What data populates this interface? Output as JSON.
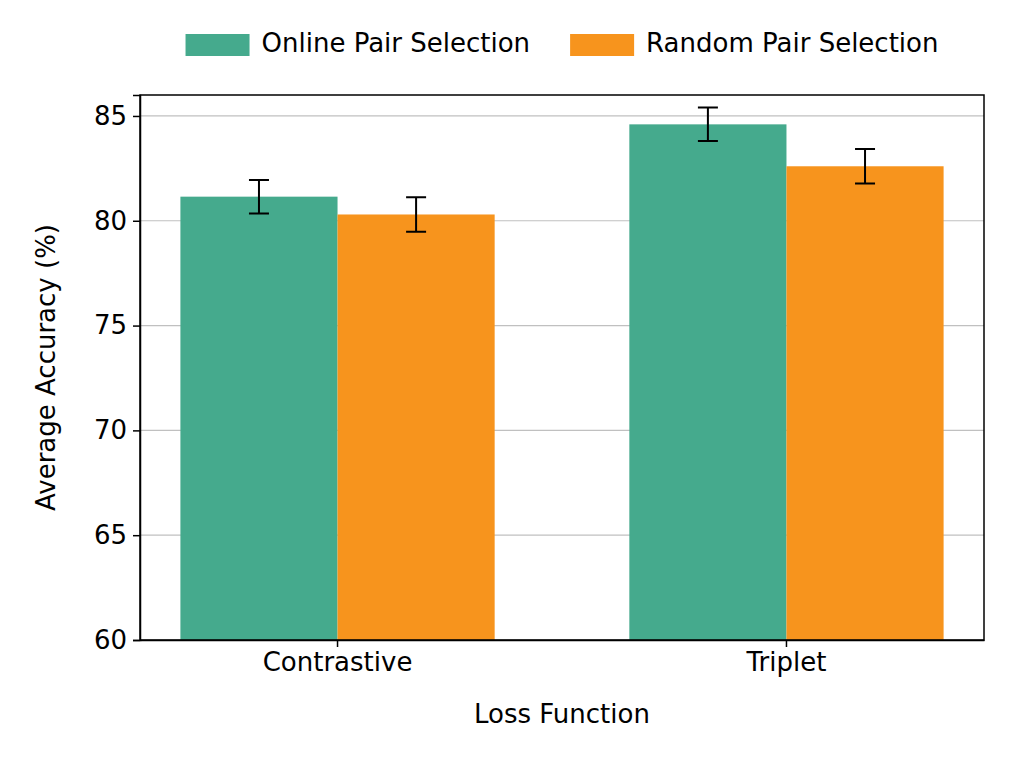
{
  "chart_data": {
    "type": "bar",
    "x_label": "Loss Function",
    "y_label": "Average Accuracy (%)",
    "categories": [
      "Contrastive",
      "Triplet"
    ],
    "series": [
      {
        "name": "Online Pair Selection",
        "color": "#45aa8d",
        "values": [
          81.15,
          84.6
        ],
        "errors": [
          0.8,
          0.8
        ]
      },
      {
        "name": "Random Pair Selection",
        "color": "#f7941d",
        "values": [
          80.3,
          82.6
        ],
        "errors": [
          0.82,
          0.82
        ]
      }
    ],
    "ylim": [
      60,
      86
    ],
    "yticks": [
      60,
      65,
      70,
      75,
      80,
      85
    ],
    "grid": true,
    "legend": "top"
  }
}
